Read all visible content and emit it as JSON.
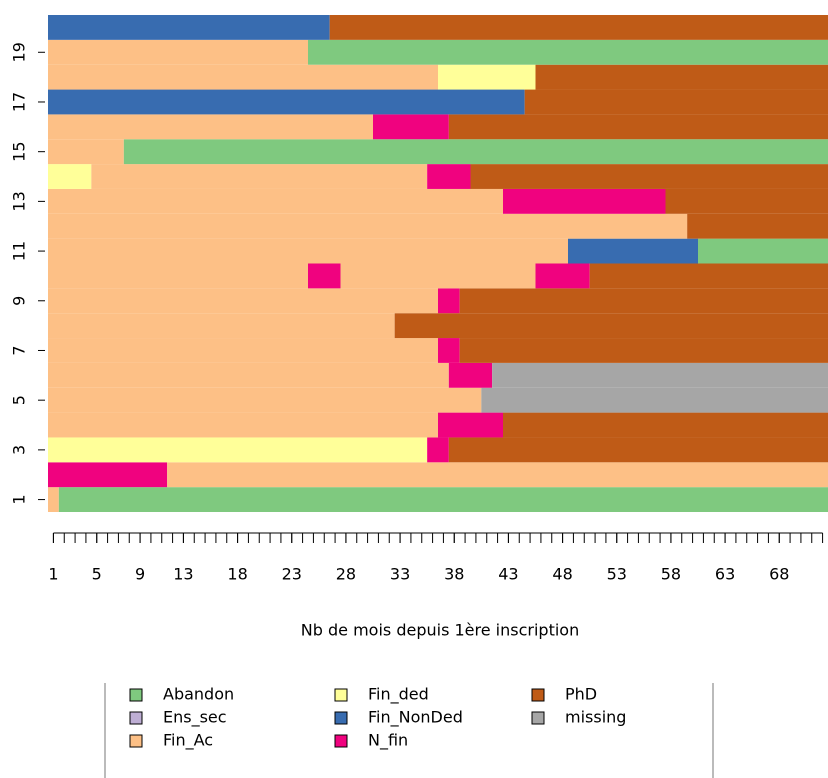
{
  "chart_data": {
    "type": "sequence",
    "xlabel": "Nb de mois depuis 1ère inscription",
    "xlim": [
      1,
      72
    ],
    "xticks": [
      1,
      5,
      9,
      13,
      18,
      23,
      28,
      33,
      38,
      43,
      48,
      53,
      58,
      63,
      68
    ],
    "ylim": [
      1,
      20
    ],
    "yticks": [
      1,
      3,
      5,
      7,
      9,
      11,
      13,
      15,
      17,
      19
    ],
    "states": [
      {
        "name": "Abandon",
        "color": "#7fc97f"
      },
      {
        "name": "Ens_sec",
        "color": "#beaed4"
      },
      {
        "name": "Fin_Ac",
        "color": "#fdc086"
      },
      {
        "name": "Fin_ded",
        "color": "#ffff99"
      },
      {
        "name": "Fin_NonDed",
        "color": "#386cb0"
      },
      {
        "name": "N_fin",
        "color": "#f0027f"
      },
      {
        "name": "PhD",
        "color": "#bf5b17"
      },
      {
        "name": "missing",
        "color": "#a6a6a6"
      }
    ],
    "rows": [
      {
        "states": [
          "Fin_Ac",
          "Abandon"
        ],
        "months": [
          1,
          71
        ]
      },
      {
        "states": [
          "N_fin",
          "Fin_Ac"
        ],
        "months": [
          11,
          61
        ]
      },
      {
        "states": [
          "Fin_ded",
          "N_fin",
          "PhD"
        ],
        "months": [
          35,
          2,
          35
        ]
      },
      {
        "states": [
          "Fin_Ac",
          "N_fin",
          "PhD"
        ],
        "months": [
          36,
          6,
          30
        ]
      },
      {
        "states": [
          "Fin_Ac",
          "missing"
        ],
        "months": [
          40,
          32
        ]
      },
      {
        "states": [
          "Fin_Ac",
          "N_fin",
          "missing"
        ],
        "months": [
          37,
          4,
          31
        ]
      },
      {
        "states": [
          "Fin_Ac",
          "N_fin",
          "PhD"
        ],
        "months": [
          36,
          2,
          34
        ]
      },
      {
        "states": [
          "Fin_Ac",
          "PhD"
        ],
        "months": [
          32,
          40
        ]
      },
      {
        "states": [
          "Fin_Ac",
          "N_fin",
          "PhD"
        ],
        "months": [
          36,
          2,
          34
        ]
      },
      {
        "states": [
          "Fin_Ac",
          "N_fin",
          "Fin_Ac",
          "N_fin",
          "PhD"
        ],
        "months": [
          24,
          3,
          18,
          5,
          22
        ]
      },
      {
        "states": [
          "Fin_Ac",
          "Fin_NonDed",
          "Abandon"
        ],
        "months": [
          48,
          12,
          12
        ]
      },
      {
        "states": [
          "Fin_Ac",
          "PhD"
        ],
        "months": [
          59,
          13
        ]
      },
      {
        "states": [
          "Fin_Ac",
          "N_fin",
          "PhD"
        ],
        "months": [
          42,
          15,
          15
        ]
      },
      {
        "states": [
          "Fin_ded",
          "Fin_Ac",
          "N_fin",
          "PhD"
        ],
        "months": [
          4,
          31,
          4,
          33
        ]
      },
      {
        "states": [
          "Fin_Ac",
          "Abandon"
        ],
        "months": [
          7,
          65
        ]
      },
      {
        "states": [
          "Fin_Ac",
          "N_fin",
          "PhD"
        ],
        "months": [
          30,
          7,
          35
        ]
      },
      {
        "states": [
          "Fin_NonDed",
          "PhD"
        ],
        "months": [
          44,
          28
        ]
      },
      {
        "states": [
          "Fin_Ac",
          "Fin_ded",
          "PhD"
        ],
        "months": [
          36,
          9,
          27
        ]
      },
      {
        "states": [
          "Fin_Ac",
          "Abandon"
        ],
        "months": [
          24,
          48
        ]
      },
      {
        "states": [
          "Fin_NonDed",
          "PhD"
        ],
        "months": [
          26,
          46
        ]
      }
    ]
  }
}
